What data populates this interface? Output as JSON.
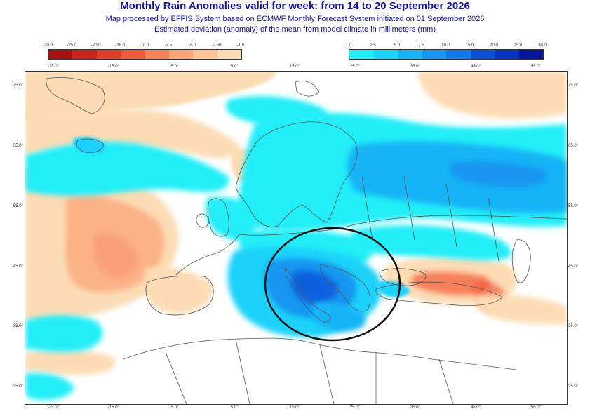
{
  "header": {
    "title": "Monthly Rain Anomalies valid for week: from 14 to 20 September 2026",
    "subtitle1": "Map processed by EFFIS System based on ECMWF Monthly Forecast System initiated on 01 September 2026",
    "subtitle2": "Estimated deviation (anomaly) of the mean from model climate in millimeters (mm)"
  },
  "legend_negative": {
    "ticks": [
      "-30.0",
      "-25.0",
      "-20.0",
      "-15.0",
      "-10.0",
      "-7.5",
      "-5.0",
      "-2.50",
      "-1.0"
    ],
    "colors": [
      "#a50f0f",
      "#c8231e",
      "#e03c2a",
      "#f05a3c",
      "#f7805a",
      "#fba478",
      "#fdc596",
      "#fcdcb4"
    ]
  },
  "legend_positive": {
    "ticks": [
      "1.0",
      "2.5",
      "5.0",
      "7.5",
      "10.0",
      "15.0",
      "20.0",
      "25.0",
      "30.0"
    ],
    "colors": [
      "#22eef8",
      "#1ad2fa",
      "#18b4f6",
      "#1796f0",
      "#1278ea",
      "#0a50d8",
      "#0832c0",
      "#06149c"
    ]
  },
  "map": {
    "longitude_labels": [
      "-25.0°",
      "-15.0°",
      "-5.0°",
      "5.0°",
      "15.0°",
      "25.0°",
      "35.0°",
      "45.0°",
      "55.0°"
    ],
    "latitude_labels": [
      "75.0°",
      "65.0°",
      "55.0°",
      "45.0°",
      "35.0°",
      "25.0°"
    ],
    "highlight": "circled area over Italy and the central Mediterranean"
  }
}
